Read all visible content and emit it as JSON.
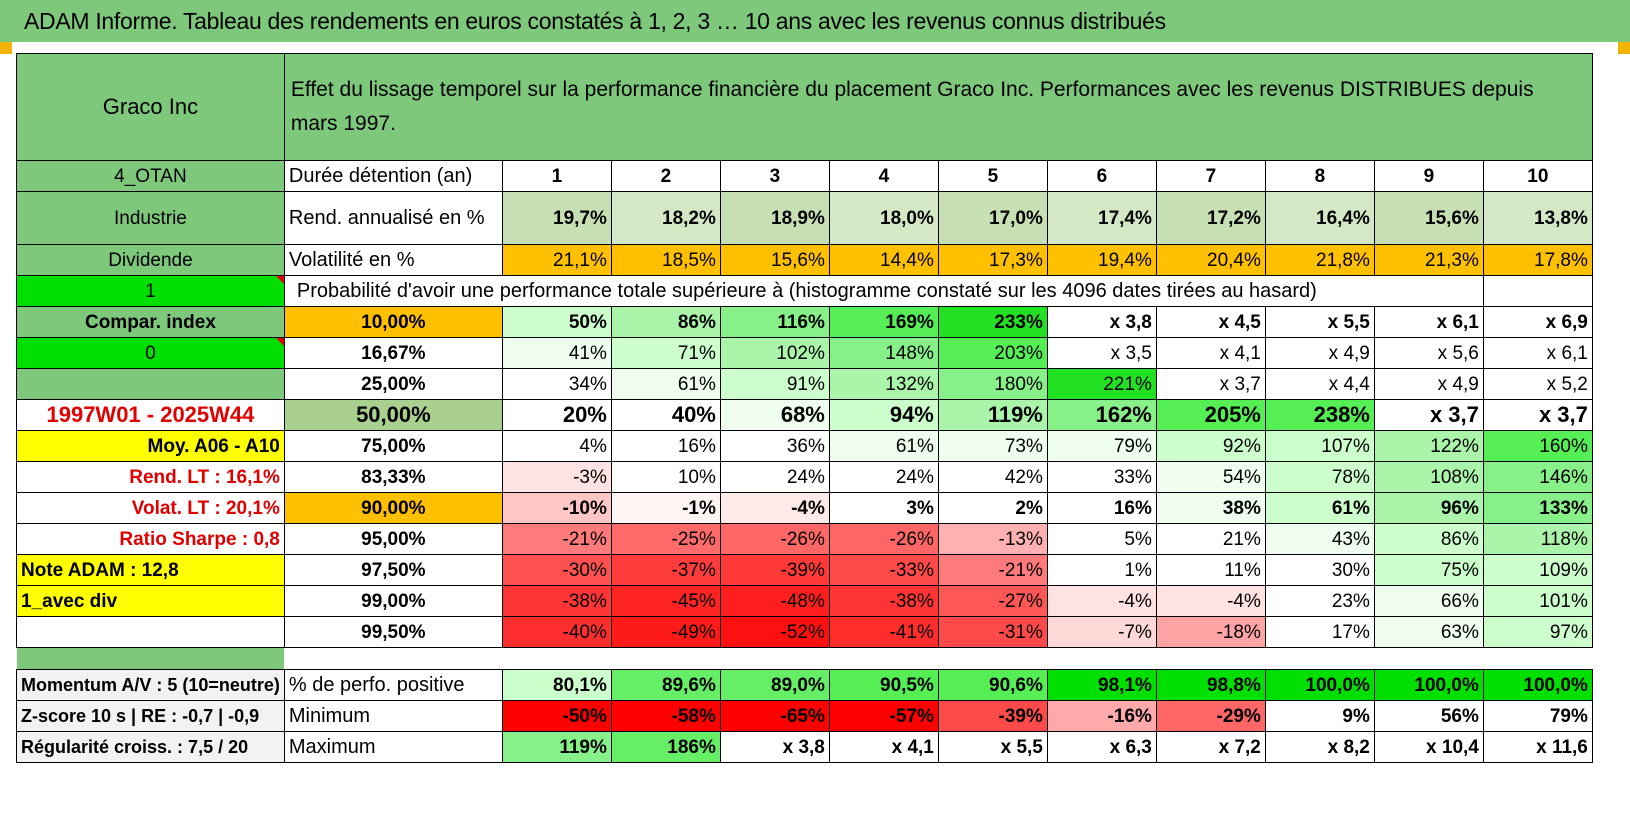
{
  "title": "ADAM Informe. Tableau des rendements en euros constatés à 1, 2, 3 … 10 ans avec les revenus connus distribués",
  "header": {
    "company": "Graco Inc",
    "description": "Effet du lissage temporel sur la performance financière du placement Graco Inc. Performances avec les revenus DISTRIBUES depuis mars 1997."
  },
  "side": {
    "code": "4_OTAN",
    "sector": "Industrie",
    "type": "Dividende",
    "input1": "1",
    "compar": "Compar. index",
    "input0": "0",
    "period": "1997W01 - 2025W44",
    "moy": "Moy. A06 - A10",
    "rend_lt": "Rend. LT :    16,1%",
    "volat_lt": "Volat. LT :    20,1%",
    "sharpe": "Ratio Sharpe :     0,8",
    "note": "Note ADAM : 12,8",
    "avec_div": "1_avec div",
    "momentum": "Momentum A/V : 5 (10=neutre)",
    "zscore": "Z-score 10 s | RE : -0,7 | -0,9",
    "regularite": "Régularité croiss. : 7,5 / 20"
  },
  "labels": {
    "duree": "Durée détention (an)",
    "rend": "Rend. annualisé en %",
    "vol": "Volatilité en %",
    "proba": "Probabilité d'avoir une performance totale supérieure à (histogramme constaté sur les 4096 dates tirées au hasard)",
    "pos": "% de perfo. positive",
    "min": "Minimum",
    "max": "Maximum"
  },
  "years": [
    "1",
    "2",
    "3",
    "4",
    "5",
    "6",
    "7",
    "8",
    "9",
    "10"
  ],
  "rend": [
    "19,7%",
    "18,2%",
    "18,9%",
    "18,0%",
    "17,0%",
    "17,4%",
    "17,2%",
    "16,4%",
    "15,6%",
    "13,8%"
  ],
  "vol": [
    "21,1%",
    "18,5%",
    "15,6%",
    "14,4%",
    "17,3%",
    "19,4%",
    "20,4%",
    "21,8%",
    "21,3%",
    "17,8%"
  ],
  "pct_rows": [
    {
      "label": "10,00%",
      "values": [
        "50%",
        "86%",
        "116%",
        "169%",
        "233%",
        "x 3,8",
        "x 4,5",
        "x 5,5",
        "x 6,1",
        "x 6,9"
      ]
    },
    {
      "label": "16,67%",
      "values": [
        "41%",
        "71%",
        "102%",
        "148%",
        "203%",
        "x 3,5",
        "x 4,1",
        "x 4,9",
        "x 5,6",
        "x 6,1"
      ]
    },
    {
      "label": "25,00%",
      "values": [
        "34%",
        "61%",
        "91%",
        "132%",
        "180%",
        "221%",
        "x 3,7",
        "x 4,4",
        "x 4,9",
        "x 5,2"
      ]
    },
    {
      "label": "50,00%",
      "values": [
        "20%",
        "40%",
        "68%",
        "94%",
        "119%",
        "162%",
        "205%",
        "238%",
        "x 3,7",
        "x 3,7"
      ]
    },
    {
      "label": "75,00%",
      "values": [
        "4%",
        "16%",
        "36%",
        "61%",
        "73%",
        "79%",
        "92%",
        "107%",
        "122%",
        "160%"
      ]
    },
    {
      "label": "83,33%",
      "values": [
        "-3%",
        "10%",
        "24%",
        "24%",
        "42%",
        "33%",
        "54%",
        "78%",
        "108%",
        "146%"
      ]
    },
    {
      "label": "90,00%",
      "values": [
        "-10%",
        "-1%",
        "-4%",
        "3%",
        "2%",
        "16%",
        "38%",
        "61%",
        "96%",
        "133%"
      ]
    },
    {
      "label": "95,00%",
      "values": [
        "-21%",
        "-25%",
        "-26%",
        "-26%",
        "-13%",
        "5%",
        "21%",
        "43%",
        "86%",
        "118%"
      ]
    },
    {
      "label": "97,50%",
      "values": [
        "-30%",
        "-37%",
        "-39%",
        "-33%",
        "-21%",
        "1%",
        "11%",
        "30%",
        "75%",
        "109%"
      ]
    },
    {
      "label": "99,00%",
      "values": [
        "-38%",
        "-45%",
        "-48%",
        "-38%",
        "-27%",
        "-4%",
        "-4%",
        "23%",
        "66%",
        "101%"
      ]
    },
    {
      "label": "99,50%",
      "values": [
        "-40%",
        "-49%",
        "-52%",
        "-41%",
        "-31%",
        "-7%",
        "-18%",
        "17%",
        "63%",
        "97%"
      ]
    }
  ],
  "pos": [
    "80,1%",
    "89,6%",
    "89,0%",
    "90,5%",
    "90,6%",
    "98,1%",
    "98,8%",
    "100,0%",
    "100,0%",
    "100,0%"
  ],
  "min": [
    "-50%",
    "-58%",
    "-65%",
    "-57%",
    "-39%",
    "-16%",
    "-29%",
    "9%",
    "56%",
    "79%"
  ],
  "max": [
    "119%",
    "186%",
    "x 3,8",
    "x 4,1",
    "x 5,5",
    "x 6,3",
    "x 7,2",
    "x 8,2",
    "x 10,4",
    "x 11,6"
  ],
  "colors": {
    "title_green": "#7dc87a",
    "side_green": "#7dc87a",
    "bright_green": "#00e000",
    "yellow": "#ffff00",
    "orange": "#ffc000",
    "rend_green": "#c6e0b4",
    "median_green": "#a9d08e"
  },
  "pct_bg": [
    [
      "#ccffcc",
      "#aaf5aa",
      "#88f088",
      "#55ee55",
      "#22e022",
      "#ffffff",
      "#ffffff",
      "#ffffff",
      "#ffffff",
      "#ffffff"
    ],
    [
      "#eefdee",
      "#ccffcc",
      "#aaf5aa",
      "#88f088",
      "#55ee55",
      "#ffffff",
      "#ffffff",
      "#ffffff",
      "#ffffff",
      "#ffffff"
    ],
    [
      "#ffffff",
      "#eefdee",
      "#ccffcc",
      "#aaf5aa",
      "#88f088",
      "#22e022",
      "#ffffff",
      "#ffffff",
      "#ffffff",
      "#ffffff"
    ],
    [
      "#ffffff",
      "#ffffff",
      "#eefdee",
      "#ccffcc",
      "#aaf5aa",
      "#88f088",
      "#55ee55",
      "#55ee55",
      "#ffffff",
      "#ffffff"
    ],
    [
      "#ffffff",
      "#ffffff",
      "#ffffff",
      "#eefdee",
      "#eefdee",
      "#eefdee",
      "#ccffcc",
      "#ccffcc",
      "#aaf5aa",
      "#55ee55"
    ],
    [
      "#ffe2e2",
      "#ffffff",
      "#ffffff",
      "#ffffff",
      "#ffffff",
      "#ffffff",
      "#eefdee",
      "#ccffcc",
      "#aaf5aa",
      "#88f088"
    ],
    [
      "#ffc6c6",
      "#fff4f4",
      "#ffeaea",
      "#ffffff",
      "#ffffff",
      "#ffffff",
      "#eefdee",
      "#ccffcc",
      "#aaf5aa",
      "#88f088"
    ],
    [
      "#ff7a7a",
      "#ff6a6a",
      "#ff6666",
      "#ff6666",
      "#ffb0b0",
      "#ffffff",
      "#ffffff",
      "#eefdee",
      "#ccffcc",
      "#aaf5aa"
    ],
    [
      "#ff5050",
      "#ff3c3c",
      "#ff3838",
      "#ff4a4a",
      "#ff7a7a",
      "#ffffff",
      "#ffffff",
      "#ffffff",
      "#ccffcc",
      "#ccffcc"
    ],
    [
      "#ff3434",
      "#ff2424",
      "#ff1e1e",
      "#ff3434",
      "#ff5656",
      "#ffe2e2",
      "#ffe2e2",
      "#ffffff",
      "#eefdee",
      "#ccffcc"
    ],
    [
      "#ff2e2e",
      "#ff1a1a",
      "#ff1010",
      "#ff2c2c",
      "#ff4a4a",
      "#ffd8d8",
      "#ffa4a4",
      "#ffffff",
      "#eefdee",
      "#ccffcc"
    ]
  ],
  "pos_bg": [
    "#ccffcc",
    "#66ee66",
    "#66ee66",
    "#55ee55",
    "#55ee55",
    "#00e000",
    "#00e000",
    "#00e000",
    "#00e000",
    "#00e000"
  ],
  "min_bg": [
    "#ff0000",
    "#ff0000",
    "#ff0000",
    "#ff0000",
    "#ff4a4a",
    "#ffaaaa",
    "#ff6666",
    "#ffffff",
    "#ffffff",
    "#ffffff"
  ],
  "max_bg": [
    "#88f088",
    "#66ee66",
    "#ffffff",
    "#ffffff",
    "#ffffff",
    "#ffffff",
    "#ffffff",
    "#ffffff",
    "#ffffff",
    "#ffffff"
  ]
}
